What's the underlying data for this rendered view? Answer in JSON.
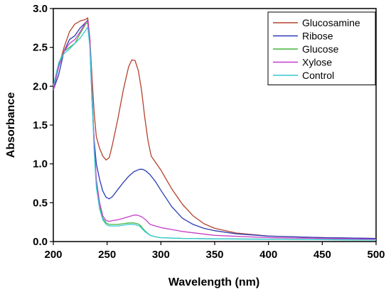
{
  "chart_data": {
    "type": "line",
    "xlabel": "Wavelength (nm)",
    "ylabel": "Absorbance",
    "xlim": [
      200,
      500
    ],
    "ylim": [
      0,
      3.0
    ],
    "xticks": [
      200,
      250,
      300,
      350,
      400,
      450,
      500
    ],
    "yticks": [
      0.0,
      0.5,
      1.0,
      1.5,
      2.0,
      2.5,
      3.0
    ],
    "xtick_labels": [
      "200",
      "250",
      "300",
      "350",
      "400",
      "450",
      "500"
    ],
    "ytick_labels": [
      "0.0",
      "0.5",
      "1.0",
      "1.5",
      "2.0",
      "2.5",
      "3.0"
    ],
    "grid": false,
    "legend_position": "top-right",
    "series": [
      {
        "name": "Glucosamine",
        "color": "#b5412d",
        "x": [
          200,
          205,
          210,
          215,
          220,
          225,
          230,
          232,
          234,
          236,
          238,
          240,
          243,
          246,
          249,
          252,
          255,
          260,
          265,
          270,
          273,
          276,
          279,
          282,
          285,
          288,
          291,
          295,
          300,
          310,
          320,
          330,
          340,
          350,
          370,
          400,
          450,
          500
        ],
        "y": [
          1.98,
          2.25,
          2.5,
          2.7,
          2.8,
          2.84,
          2.86,
          2.88,
          2.6,
          2.1,
          1.65,
          1.35,
          1.2,
          1.1,
          1.05,
          1.08,
          1.25,
          1.58,
          1.95,
          2.25,
          2.34,
          2.33,
          2.2,
          1.95,
          1.6,
          1.3,
          1.1,
          1.02,
          0.92,
          0.68,
          0.48,
          0.33,
          0.23,
          0.17,
          0.11,
          0.07,
          0.05,
          0.04
        ]
      },
      {
        "name": "Ribose",
        "color": "#2a3bb5",
        "x": [
          200,
          205,
          210,
          215,
          220,
          225,
          230,
          232,
          234,
          236,
          238,
          240,
          243,
          246,
          249,
          252,
          255,
          260,
          265,
          270,
          275,
          280,
          283,
          286,
          290,
          295,
          300,
          310,
          320,
          330,
          340,
          350,
          370,
          400,
          450,
          500
        ],
        "y": [
          1.95,
          2.15,
          2.45,
          2.6,
          2.65,
          2.75,
          2.82,
          2.85,
          2.5,
          1.8,
          1.3,
          1.0,
          0.8,
          0.65,
          0.57,
          0.55,
          0.58,
          0.67,
          0.76,
          0.84,
          0.9,
          0.93,
          0.93,
          0.91,
          0.86,
          0.77,
          0.66,
          0.45,
          0.3,
          0.22,
          0.17,
          0.14,
          0.1,
          0.07,
          0.05,
          0.04
        ]
      },
      {
        "name": "Glucose",
        "color": "#40b53c",
        "x": [
          200,
          205,
          210,
          215,
          220,
          225,
          230,
          232,
          234,
          236,
          238,
          240,
          243,
          246,
          249,
          252,
          255,
          260,
          265,
          270,
          275,
          280,
          285,
          290,
          295,
          300,
          320,
          350,
          400,
          450,
          500
        ],
        "y": [
          2.0,
          2.3,
          2.45,
          2.5,
          2.55,
          2.68,
          2.8,
          2.82,
          2.55,
          1.9,
          1.2,
          0.75,
          0.45,
          0.3,
          0.24,
          0.22,
          0.22,
          0.22,
          0.23,
          0.24,
          0.24,
          0.22,
          0.14,
          0.08,
          0.06,
          0.05,
          0.04,
          0.035,
          0.03,
          0.025,
          0.02
        ]
      },
      {
        "name": "Xylose",
        "color": "#c63ec9",
        "x": [
          200,
          205,
          210,
          215,
          220,
          225,
          230,
          232,
          234,
          236,
          238,
          240,
          243,
          246,
          249,
          252,
          255,
          260,
          265,
          270,
          275,
          278,
          282,
          286,
          290,
          295,
          300,
          320,
          350,
          400,
          450,
          500
        ],
        "y": [
          1.95,
          2.25,
          2.45,
          2.55,
          2.6,
          2.7,
          2.82,
          2.84,
          2.6,
          1.9,
          1.25,
          0.8,
          0.5,
          0.33,
          0.27,
          0.26,
          0.27,
          0.28,
          0.3,
          0.32,
          0.34,
          0.34,
          0.32,
          0.28,
          0.22,
          0.2,
          0.18,
          0.13,
          0.08,
          0.05,
          0.04,
          0.03
        ]
      },
      {
        "name": "Control",
        "color": "#35c9d6",
        "x": [
          200,
          205,
          210,
          215,
          220,
          225,
          230,
          232,
          234,
          236,
          238,
          240,
          243,
          246,
          249,
          252,
          255,
          260,
          265,
          270,
          275,
          280,
          285,
          290,
          295,
          300,
          320,
          350,
          400,
          450,
          500
        ],
        "y": [
          2.0,
          2.3,
          2.42,
          2.48,
          2.55,
          2.62,
          2.72,
          2.76,
          2.5,
          1.85,
          1.15,
          0.7,
          0.42,
          0.28,
          0.22,
          0.2,
          0.2,
          0.2,
          0.21,
          0.22,
          0.22,
          0.2,
          0.13,
          0.08,
          0.06,
          0.05,
          0.04,
          0.035,
          0.03,
          0.025,
          0.02
        ]
      }
    ]
  }
}
